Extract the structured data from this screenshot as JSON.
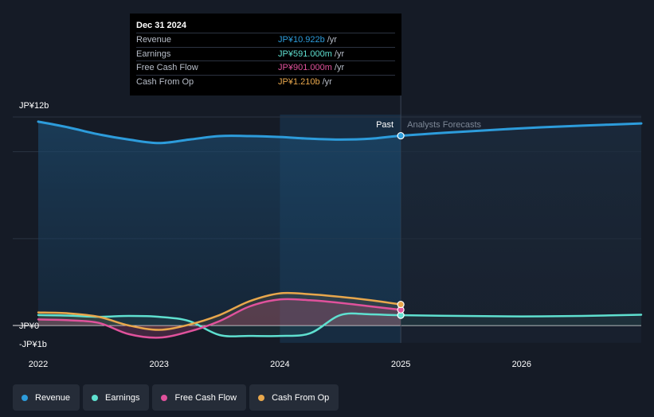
{
  "tooltip": {
    "date": "Dec 31 2024",
    "rows": [
      {
        "label": "Revenue",
        "value": "JP¥10.922b",
        "unit": "/yr",
        "color": "#2d9cdb"
      },
      {
        "label": "Earnings",
        "value": "JP¥591.000m",
        "unit": "/yr",
        "color": "#5fe0d0"
      },
      {
        "label": "Free Cash Flow",
        "value": "JP¥901.000m",
        "unit": "/yr",
        "color": "#e0529c"
      },
      {
        "label": "Cash From Op",
        "value": "JP¥1.210b",
        "unit": "/yr",
        "color": "#e8a74c"
      }
    ]
  },
  "legend": [
    {
      "label": "Revenue",
      "color": "#2d9cdb"
    },
    {
      "label": "Earnings",
      "color": "#5fe0d0"
    },
    {
      "label": "Free Cash Flow",
      "color": "#e0529c"
    },
    {
      "label": "Cash From Op",
      "color": "#e8a74c"
    }
  ],
  "chart_data": {
    "type": "line",
    "title": "",
    "xlabel": "",
    "ylabel": "",
    "xlim": [
      2022.0,
      2026.99
    ],
    "ylim": [
      -1,
      12
    ],
    "y_tick_labels": [
      {
        "label": "JP¥12b",
        "value": 12
      },
      {
        "label": "JP¥0",
        "value": 0
      },
      {
        "label": "-JP¥1b",
        "value": -1
      }
    ],
    "x_tick_labels": [
      {
        "label": "2022",
        "value": 2022
      },
      {
        "label": "2023",
        "value": 2023
      },
      {
        "label": "2024",
        "value": 2024
      },
      {
        "label": "2025",
        "value": 2025
      },
      {
        "label": "2026",
        "value": 2026
      }
    ],
    "divider_x": 2025.0,
    "past_label": "Past",
    "forecast_label": "Analysts Forecasts",
    "series": [
      {
        "name": "Revenue",
        "color": "#2d9cdb",
        "x": [
          2022.0,
          2022.25,
          2022.5,
          2022.75,
          2023.0,
          2023.25,
          2023.5,
          2023.75,
          2024.0,
          2024.25,
          2024.5,
          2024.75,
          2025.0,
          2025.5,
          2026.0,
          2026.5,
          2026.99
        ],
        "y": [
          11.73,
          11.4,
          11.0,
          10.7,
          10.5,
          10.7,
          10.9,
          10.9,
          10.85,
          10.75,
          10.7,
          10.75,
          10.92,
          11.15,
          11.35,
          11.5,
          11.63
        ]
      },
      {
        "name": "Earnings",
        "color": "#5fe0d0",
        "x": [
          2022.0,
          2022.25,
          2022.5,
          2022.75,
          2023.0,
          2023.25,
          2023.5,
          2023.75,
          2024.0,
          2024.25,
          2024.5,
          2024.75,
          2025.0,
          2025.5,
          2026.0,
          2026.5,
          2026.99
        ],
        "y": [
          0.6,
          0.57,
          0.5,
          0.55,
          0.5,
          0.25,
          -0.55,
          -0.6,
          -0.6,
          -0.45,
          0.6,
          0.64,
          0.591,
          0.55,
          0.52,
          0.55,
          0.62
        ]
      },
      {
        "name": "Free Cash Flow",
        "color": "#e0529c",
        "x": [
          2022.0,
          2022.25,
          2022.5,
          2022.75,
          2023.0,
          2023.25,
          2023.5,
          2023.75,
          2024.0,
          2024.25,
          2024.5,
          2024.75,
          2025.0
        ],
        "y": [
          0.35,
          0.3,
          0.15,
          -0.5,
          -0.7,
          -0.35,
          0.25,
          1.1,
          1.5,
          1.45,
          1.3,
          1.1,
          0.901
        ]
      },
      {
        "name": "Cash From Op",
        "color": "#e8a74c",
        "x": [
          2022.0,
          2022.25,
          2022.5,
          2022.75,
          2023.0,
          2023.25,
          2023.5,
          2023.75,
          2024.0,
          2024.25,
          2024.5,
          2024.75,
          2025.0
        ],
        "y": [
          0.75,
          0.7,
          0.5,
          0.0,
          -0.25,
          0.05,
          0.6,
          1.4,
          1.85,
          1.8,
          1.65,
          1.45,
          1.21
        ]
      }
    ]
  }
}
